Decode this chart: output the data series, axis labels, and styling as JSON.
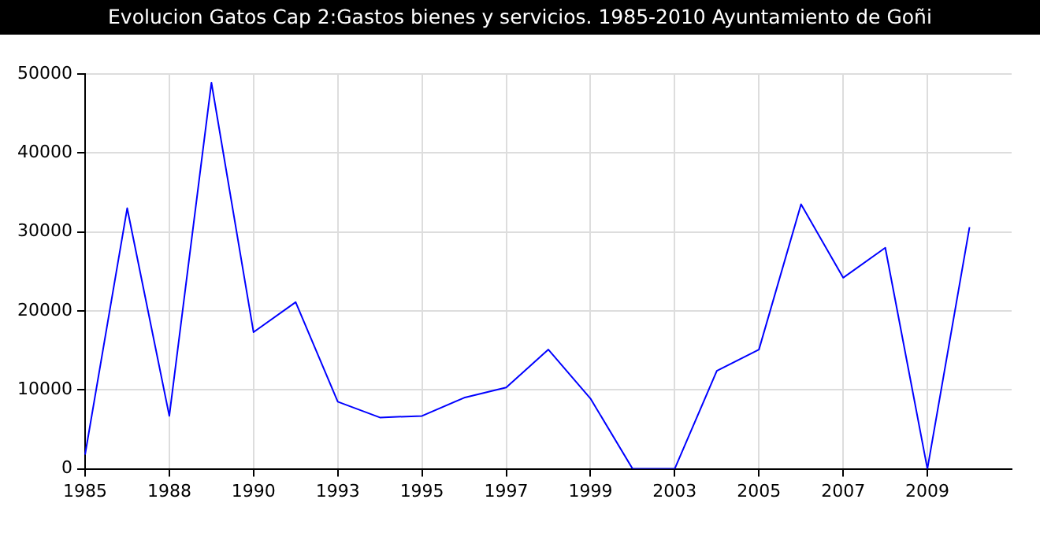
{
  "chart_data": {
    "type": "line",
    "title": "Evolucion Gatos Cap 2:Gastos bienes y servicios. 1985-2010 Ayuntamiento de Goñi",
    "categories": [
      "1985",
      null,
      "1988",
      null,
      "1990",
      null,
      "1993",
      null,
      "1995",
      null,
      "1997",
      null,
      "1999",
      null,
      "2003",
      null,
      "2005",
      null,
      "2007",
      null,
      "2009",
      null,
      null
    ],
    "series": [
      {
        "color": "#0000ff",
        "values": [
          1800,
          33000,
          6700,
          48900,
          17300,
          21100,
          8500,
          6500,
          6700,
          9000,
          10300,
          15100,
          8900,
          0,
          0,
          12400,
          15100,
          33500,
          24200,
          28000,
          0,
          30600,
          null
        ]
      }
    ],
    "ylim": [
      0,
      50000
    ],
    "yticks": [
      0,
      10000,
      20000,
      30000,
      40000,
      50000
    ],
    "grid": true,
    "legend": false,
    "marker": "none",
    "line_style": "solid"
  }
}
